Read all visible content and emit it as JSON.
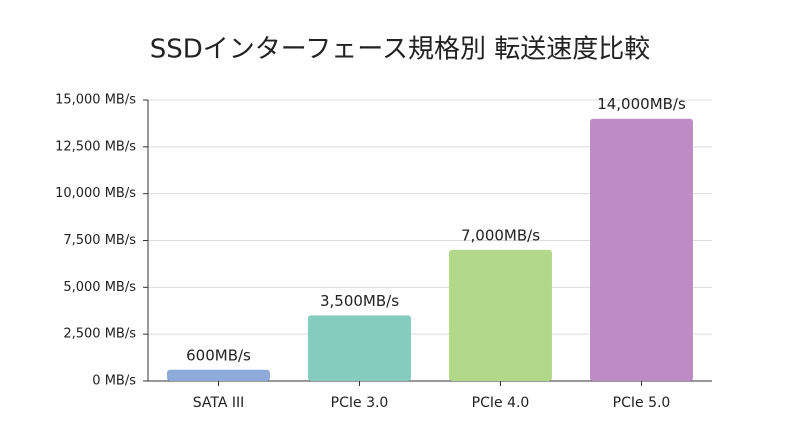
{
  "chart_data": {
    "type": "bar",
    "title": "SSDインターフェース規格別 転送速度比較",
    "categories": [
      "SATA III",
      "PCIe 3.0",
      "PCIe 4.0",
      "PCIe 5.0"
    ],
    "values": [
      600,
      3500,
      7000,
      14000
    ],
    "value_labels": [
      "600MB/s",
      "3,500MB/s",
      "7,000MB/s",
      "14,000MB/s"
    ],
    "colors": [
      "#8eaadb",
      "#85cbbe",
      "#b2d98a",
      "#bf8bc7"
    ],
    "ylim": [
      0,
      15000
    ],
    "yticks": [
      {
        "value": 0,
        "label": "0 MB/s"
      },
      {
        "value": 2500,
        "label": "2,500 MB/s"
      },
      {
        "value": 5000,
        "label": "5,000 MB/s"
      },
      {
        "value": 7500,
        "label": "7,500 MB/s"
      },
      {
        "value": 10000,
        "label": "10,000 MB/s"
      },
      {
        "value": 12500,
        "label": "12,500 MB/s"
      },
      {
        "value": 15000,
        "label": "15,000 MB/s"
      }
    ],
    "grid": true
  }
}
